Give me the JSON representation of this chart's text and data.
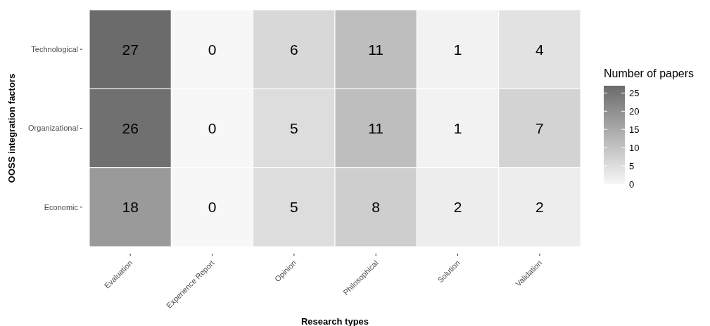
{
  "chart_data": {
    "type": "heatmap",
    "xlabel": "Research types",
    "ylabel": "OOSS integration factors",
    "clabel": "Number of papers",
    "categories": [
      "Evaluation",
      "Experience Report",
      "Opinion",
      "Philosophical",
      "Solution",
      "Validation"
    ],
    "y_categories": [
      "Technological",
      "Organizational",
      "Economic"
    ],
    "cells": [
      [
        27,
        0,
        6,
        11,
        1,
        4
      ],
      [
        26,
        0,
        5,
        11,
        1,
        7
      ],
      [
        18,
        0,
        5,
        8,
        2,
        2
      ]
    ],
    "clim": [
      0,
      27
    ],
    "cticks": [
      0,
      5,
      10,
      15,
      20,
      25
    ],
    "data_labels": true
  }
}
